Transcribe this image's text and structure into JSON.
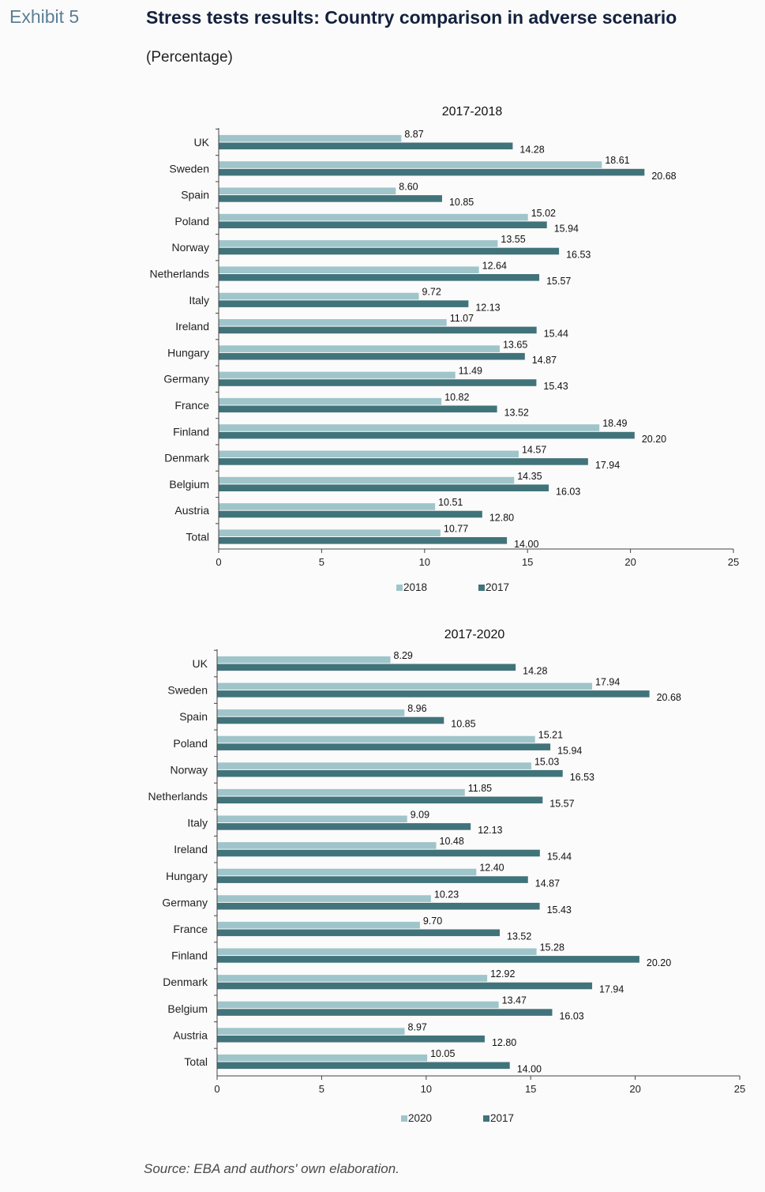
{
  "header": {
    "exhibit": "Exhibit 5",
    "title": "Stress tests results: Country comparison in adverse scenario",
    "subtitle": "(Percentage)"
  },
  "footer": {
    "source": "Source: EBA and authors' own elaboration."
  },
  "colors": {
    "light_series": "#9fc5ca",
    "dark_series": "#41737a",
    "axis": "#444444"
  },
  "chart_data": [
    {
      "type": "bar",
      "orientation": "horizontal",
      "title": "2017-2018",
      "categories": [
        "UK",
        "Sweden",
        "Spain",
        "Poland",
        "Norway",
        "Netherlands",
        "Italy",
        "Ireland",
        "Hungary",
        "Germany",
        "France",
        "Finland",
        "Denmark",
        "Belgium",
        "Austria",
        "Total"
      ],
      "series": [
        {
          "name": "2018",
          "color": "#9fc5ca",
          "values": [
            8.87,
            18.61,
            8.6,
            15.02,
            13.55,
            12.64,
            9.72,
            11.07,
            13.65,
            11.49,
            10.82,
            18.49,
            14.57,
            14.35,
            10.51,
            10.77
          ]
        },
        {
          "name": "2017",
          "color": "#41737a",
          "values": [
            14.28,
            20.68,
            10.85,
            15.94,
            16.53,
            15.57,
            12.13,
            15.44,
            14.87,
            15.43,
            13.52,
            20.2,
            17.94,
            16.03,
            12.8,
            14.0
          ]
        }
      ],
      "xlim": [
        0,
        25
      ],
      "xticks": [
        0,
        5,
        10,
        15,
        20,
        25
      ],
      "legend": "bottom",
      "grid": false
    },
    {
      "type": "bar",
      "orientation": "horizontal",
      "title": "2017-2020",
      "categories": [
        "UK",
        "Sweden",
        "Spain",
        "Poland",
        "Norway",
        "Netherlands",
        "Italy",
        "Ireland",
        "Hungary",
        "Germany",
        "France",
        "Finland",
        "Denmark",
        "Belgium",
        "Austria",
        "Total"
      ],
      "series": [
        {
          "name": "2020",
          "color": "#9fc5ca",
          "values": [
            8.29,
            17.94,
            8.96,
            15.21,
            15.03,
            11.85,
            9.09,
            10.48,
            12.4,
            10.23,
            9.7,
            15.28,
            12.92,
            13.47,
            8.97,
            10.05
          ]
        },
        {
          "name": "2017",
          "color": "#41737a",
          "values": [
            14.28,
            20.68,
            10.85,
            15.94,
            16.53,
            15.57,
            12.13,
            15.44,
            14.87,
            15.43,
            13.52,
            20.2,
            17.94,
            16.03,
            12.8,
            14.0
          ]
        }
      ],
      "xlim": [
        0,
        25
      ],
      "xticks": [
        0,
        5,
        10,
        15,
        20,
        25
      ],
      "legend": "bottom",
      "grid": false
    }
  ]
}
